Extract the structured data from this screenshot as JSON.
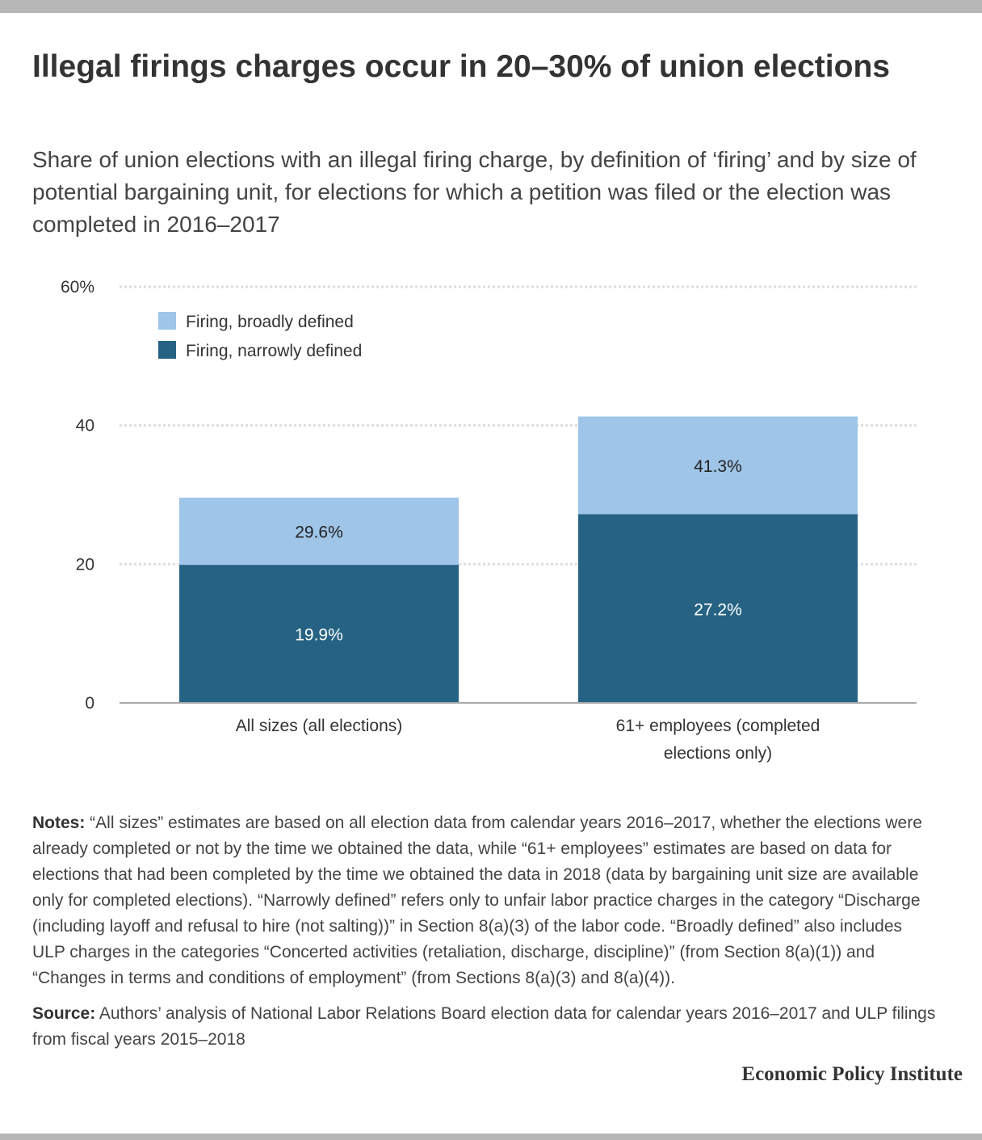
{
  "title": "Illegal firings charges occur in 20–30% of union elections",
  "subtitle": "Share of union elections with an illegal firing charge, by definition of ‘firing’ and by size of potential bargaining unit, for elections for which a petition was filed or the election was completed in 2016–2017",
  "chart_data": {
    "type": "bar",
    "stacked": true,
    "categories": [
      [
        "All sizes (all elections)"
      ],
      [
        "61+ employees (completed",
        "elections only)"
      ]
    ],
    "series": [
      {
        "name": "Firing, narrowly defined",
        "values": [
          19.9,
          27.2
        ],
        "labels": [
          "19.9%",
          "27.2%"
        ],
        "color": "#256283"
      },
      {
        "name": "Firing, broadly defined",
        "values": [
          29.6,
          41.3
        ],
        "labels": [
          "29.6%",
          "41.3%"
        ],
        "color": "#9fc5e8"
      }
    ],
    "ylim": [
      0,
      60
    ],
    "yticks": [
      0,
      20,
      40,
      60
    ],
    "ytick_labels": [
      "0",
      "20",
      "40",
      "60%"
    ],
    "grid": true,
    "legend": {
      "placement": "top-left",
      "order": [
        "Firing, broadly defined",
        "Firing, narrowly defined"
      ]
    }
  },
  "notes": {
    "notes_label": "Notes:",
    "notes_text": " “All sizes” estimates are based on all election data from calendar years 2016–2017, whether the elections were already completed or not by the time we obtained the data, while “61+ employees” estimates are based on data for elections that had been completed by the time we obtained the data in 2018 (data by bargaining unit size are available only for completed elections). “Narrowly defined” refers only to unfair labor practice charges in the category “Discharge (including layoff and refusal to hire (not salting))” in Section 8(a)(3) of the labor code. “Broadly defined” also includes ULP charges in the categories “Concerted activities (retaliation, discharge, discipline)” (from Section 8(a)(1)) and “Changes in terms and conditions of employment” (from Sections 8(a)(3) and 8(a)(4)).",
    "source_label": "Source:",
    "source_text": " Authors’ analysis of National Labor Relations Board election data for calendar years 2016–2017 and ULP filings from fiscal years 2015–2018"
  },
  "brand": "Economic Policy Institute",
  "colors": {
    "narrow": "#256283",
    "broad": "#9fc5e8",
    "grid": "#dddddd",
    "baseline": "#aaaaaa",
    "bars_border": "#b7b7b7"
  }
}
